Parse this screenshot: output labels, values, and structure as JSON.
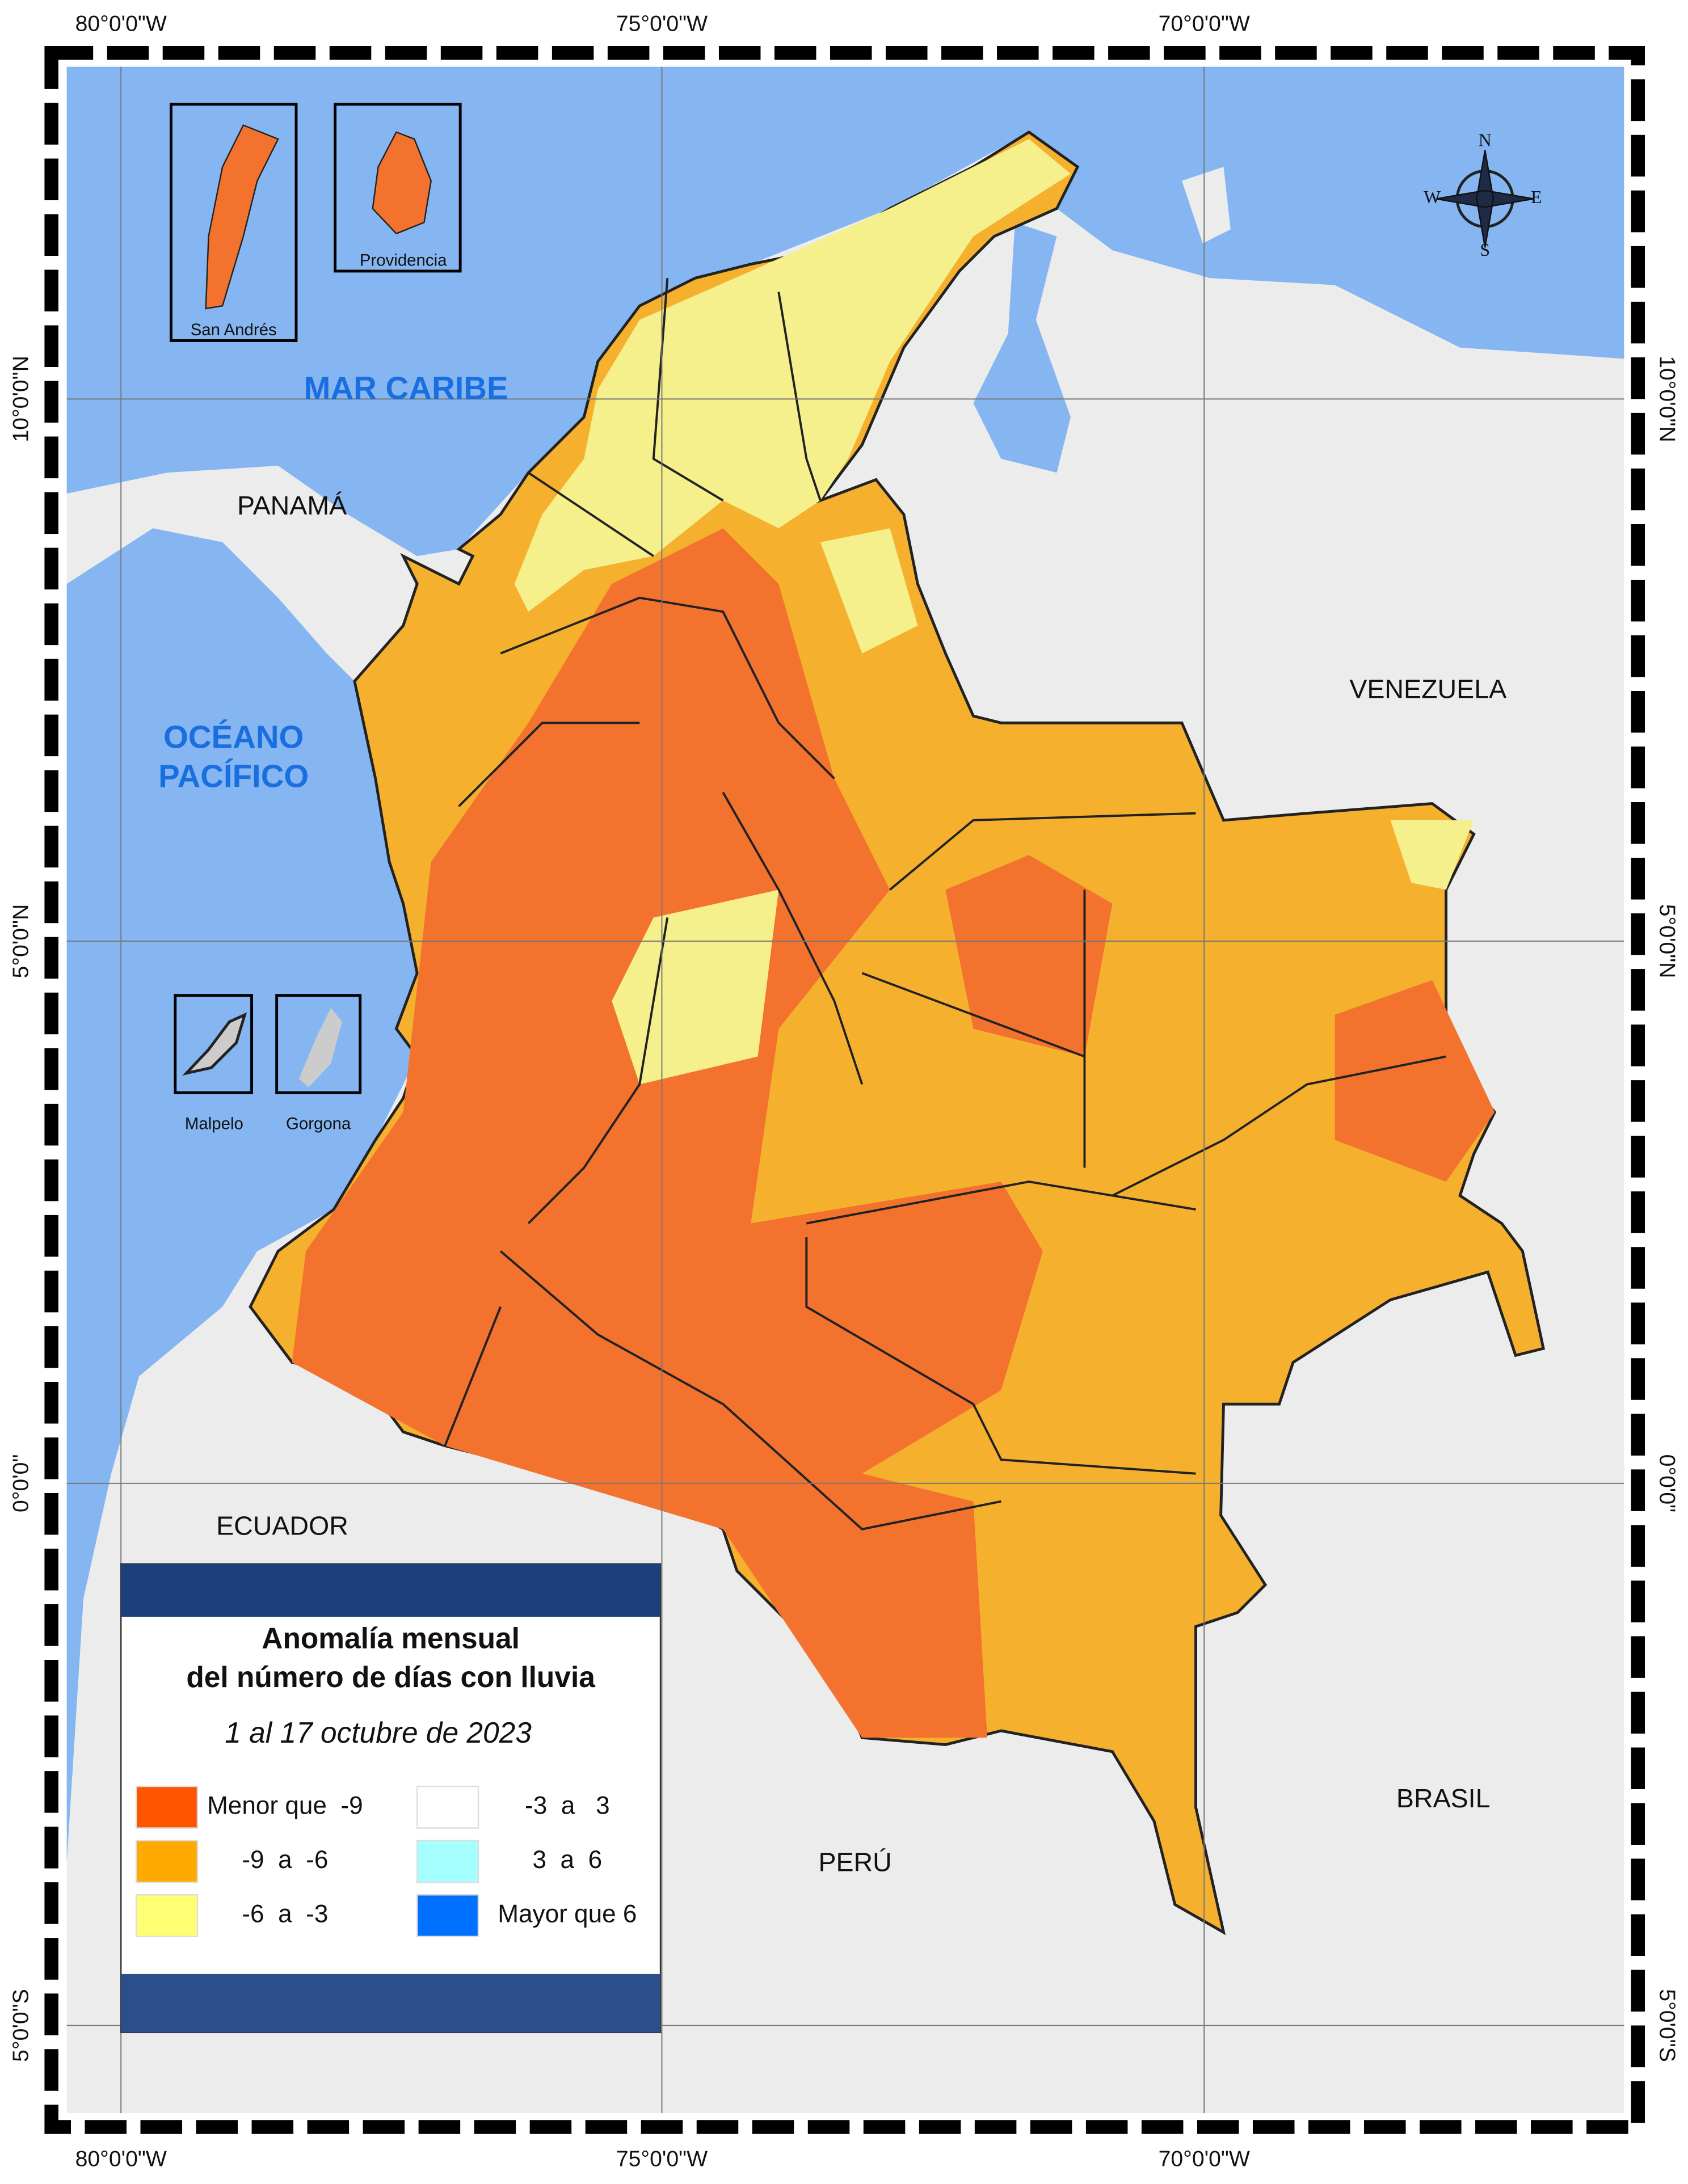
{
  "map": {
    "legend": {
      "title": [
        "Anomalía mensual",
        "del número de días con lluvia"
      ],
      "period": "1 al 17 octubre de 2023",
      "items": [
        {
          "label": "Menor que  -9",
          "color": "#ff5500"
        },
        {
          "label": "-9  a  -6",
          "color": "#ffaa00"
        },
        {
          "label": "-6  a  -3",
          "color": "#ffff73"
        },
        {
          "label": "-3  a   3",
          "color": "#ffffff"
        },
        {
          "label": "3  a  6",
          "color": "#a5ffff"
        },
        {
          "label": "Mayor que 6",
          "color": "#0070ff"
        }
      ]
    },
    "seas": [
      "MAR CARIBE",
      [
        "OCÉANO",
        "PACÍFICO"
      ]
    ],
    "countries": [
      "PANAMÁ",
      "VENEZUELA",
      "ECUADOR",
      "PERÚ",
      "BRASIL"
    ],
    "islands": [
      "San Andrés",
      "Providencia",
      "Malpelo",
      "Gorgona"
    ],
    "longitudes": [
      "80°0'0\"W",
      "75°0'0\"W",
      "70°0'0\"W"
    ],
    "latitudes": [
      "10°0'0\"N",
      "5°0'0\"N",
      "0°0'0\"",
      "5°0'0\"S"
    ],
    "compass": [
      "N",
      "E",
      "S",
      "W"
    ]
  }
}
